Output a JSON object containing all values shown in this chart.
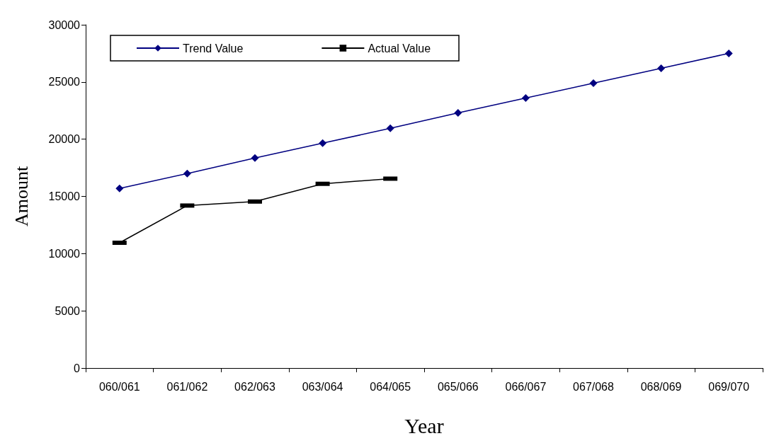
{
  "chart_data": {
    "type": "line",
    "xlabel": "Year",
    "ylabel": "Amount",
    "categories": [
      "060/061",
      "061/062",
      "062/063",
      "063/064",
      "064/065",
      "065/066",
      "066/067",
      "067/068",
      "068/069",
      "069/070"
    ],
    "series": [
      {
        "name": "Trend Value",
        "color": "#000080",
        "marker": "diamond",
        "values": [
          15700,
          17000,
          18350,
          19650,
          20950,
          22300,
          23600,
          24900,
          26200,
          27500
        ]
      },
      {
        "name": "Actual Value",
        "color": "#000000",
        "marker": "square",
        "values": [
          10950,
          14200,
          14550,
          16100,
          16550,
          null,
          null,
          null,
          null,
          null
        ]
      }
    ],
    "ylim": [
      0,
      30000
    ],
    "yticks": [
      0,
      5000,
      10000,
      15000,
      20000,
      25000,
      30000
    ],
    "grid": false,
    "legend": "top left"
  }
}
